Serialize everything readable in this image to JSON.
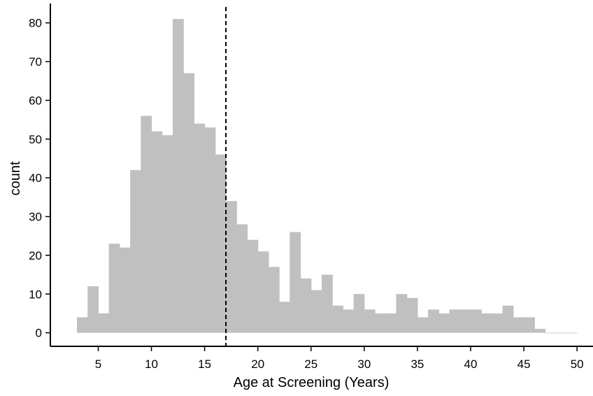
{
  "chart_data": {
    "type": "bar",
    "subtype": "histogram",
    "title": "",
    "xlabel": "Age at Screening (Years)",
    "ylabel": "count",
    "bin_width": 1,
    "bin_starts": [
      3,
      4,
      5,
      6,
      7,
      8,
      9,
      10,
      11,
      12,
      13,
      14,
      15,
      16,
      17,
      18,
      19,
      20,
      21,
      22,
      23,
      24,
      25,
      26,
      27,
      28,
      29,
      30,
      31,
      32,
      33,
      34,
      35,
      36,
      37,
      38,
      39,
      40,
      41,
      42,
      43,
      44,
      45,
      46,
      47,
      48,
      49
    ],
    "values": [
      4,
      12,
      5,
      23,
      22,
      42,
      56,
      52,
      51,
      81,
      67,
      54,
      53,
      46,
      34,
      28,
      24,
      21,
      17,
      8,
      26,
      14,
      11,
      15,
      7,
      6,
      10,
      6,
      5,
      5,
      10,
      9,
      4,
      6,
      5,
      6,
      6,
      6,
      5,
      5,
      7,
      4,
      4,
      1,
      0,
      0,
      0
    ],
    "xlim": [
      0.5,
      51.5
    ],
    "ylim": [
      -3.5,
      85
    ],
    "xticks": [
      "5",
      "10",
      "15",
      "20",
      "25",
      "30",
      "35",
      "40",
      "45",
      "50"
    ],
    "yticks": [
      "0",
      "10",
      "20",
      "30",
      "40",
      "50",
      "60",
      "70",
      "80"
    ],
    "reference_line": {
      "x": 17,
      "style": "dashed",
      "color": "#000000"
    },
    "bar_color": "#c0c0c0",
    "grid": false,
    "legend": "none"
  }
}
